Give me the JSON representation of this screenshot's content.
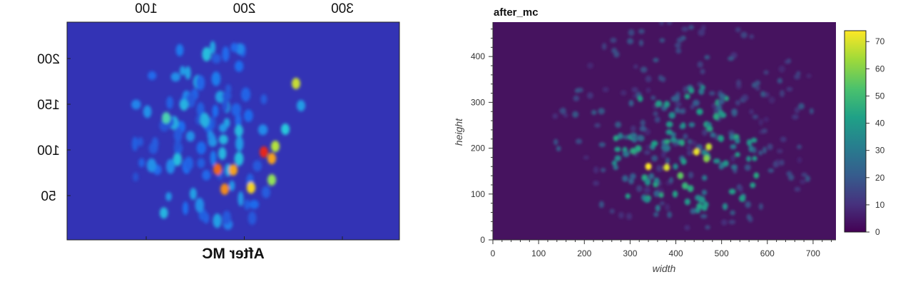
{
  "chart_data": [
    {
      "type": "heatmap",
      "title": "After MC",
      "title_position": "bottom",
      "rendering": "mirrored (flipped) image",
      "x_ticks": [
        100,
        200,
        300
      ],
      "y_ticks": [
        50,
        100,
        150,
        200
      ],
      "xlim": [
        0,
        380
      ],
      "ylim": [
        0,
        240
      ],
      "colormap": "jet",
      "background_value_color": "#3333b5"
    },
    {
      "type": "heatmap",
      "title": "after_mc",
      "xlabel": "width",
      "ylabel": "height",
      "x_ticks": [
        0,
        100,
        200,
        300,
        400,
        500,
        600,
        700
      ],
      "y_ticks": [
        0,
        100,
        200,
        300,
        400
      ],
      "xlim": [
        0,
        750
      ],
      "ylim": [
        0,
        475
      ],
      "colormap": "viridis",
      "colorbar": {
        "ticks": [
          0,
          10,
          20,
          30,
          40,
          50,
          60,
          70
        ],
        "range": [
          0,
          74
        ]
      },
      "hotspots": [
        {
          "x": 340,
          "y": 160,
          "v": 74
        },
        {
          "x": 380,
          "y": 158,
          "v": 70
        },
        {
          "x": 445,
          "y": 192,
          "v": 72
        },
        {
          "x": 472,
          "y": 203,
          "v": 68
        },
        {
          "x": 467,
          "y": 177,
          "v": 60
        },
        {
          "x": 410,
          "y": 140,
          "v": 55
        },
        {
          "x": 420,
          "y": 118,
          "v": 48
        },
        {
          "x": 432,
          "y": 112,
          "v": 45
        }
      ]
    }
  ]
}
